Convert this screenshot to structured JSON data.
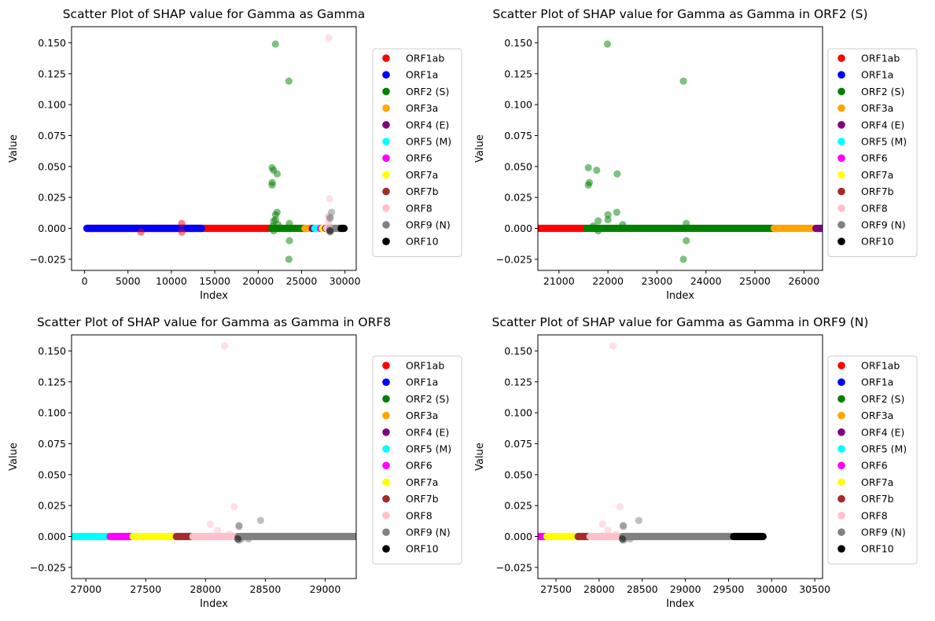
{
  "legend": [
    {
      "name": "ORF1ab",
      "color": "#ff0000"
    },
    {
      "name": "ORF1a",
      "color": "#0000ff"
    },
    {
      "name": "ORF2 (S)",
      "color": "#008000"
    },
    {
      "name": "ORF3a",
      "color": "#ffa500"
    },
    {
      "name": "ORF4 (E)",
      "color": "#800080"
    },
    {
      "name": "ORF5 (M)",
      "color": "#00ffff"
    },
    {
      "name": "ORF6",
      "color": "#ff00ff"
    },
    {
      "name": "ORF7a",
      "color": "#ffff00"
    },
    {
      "name": "ORF7b",
      "color": "#a52a2a"
    },
    {
      "name": "ORF8",
      "color": "#ffc0cb"
    },
    {
      "name": "ORF9 (N)",
      "color": "#808080"
    },
    {
      "name": "ORF10",
      "color": "#000000"
    }
  ],
  "chart_data": [
    {
      "type": "scatter",
      "title": "Scatter Plot of SHAP value for Gamma as Gamma",
      "xlabel": "Index",
      "ylabel": "Value",
      "xlim": [
        -1500,
        31300
      ],
      "ylim": [
        -0.034,
        0.163
      ],
      "xticks": [
        0,
        5000,
        10000,
        15000,
        20000,
        25000,
        30000
      ],
      "yticks": [
        -0.025,
        0,
        0.025,
        0.05,
        0.075,
        0.1,
        0.125,
        0.15
      ],
      "legend_position": "right",
      "series": [
        {
          "name": "ORF1ab",
          "color": "#ff0000",
          "range": [
            266,
            21555
          ],
          "points": [
            [
              6500,
              -0.003
            ],
            [
              11200,
              0.004
            ],
            [
              11200,
              -0.003
            ]
          ]
        },
        {
          "name": "ORF1a",
          "color": "#0000ff",
          "range": [
            266,
            13483
          ],
          "points": []
        },
        {
          "name": "ORF2 (S)",
          "color": "#008000",
          "range": [
            21563,
            25384
          ],
          "points": [
            [
              21990,
              0.149
            ],
            [
              23540,
              0.119
            ],
            [
              21600,
              0.049
            ],
            [
              21770,
              0.047
            ],
            [
              22190,
              0.044
            ],
            [
              21620,
              0.037
            ],
            [
              21600,
              0.035
            ],
            [
              22000,
              0.011
            ],
            [
              22180,
              0.013
            ],
            [
              22000,
              0.007
            ],
            [
              21800,
              0.006
            ],
            [
              23600,
              0.004
            ],
            [
              21700,
              0.002
            ],
            [
              23600,
              -0.01
            ],
            [
              23540,
              -0.025
            ],
            [
              21800,
              -0.002
            ],
            [
              22300,
              0.003
            ]
          ]
        },
        {
          "name": "ORF3a",
          "color": "#ffa500",
          "range": [
            25393,
            26220
          ],
          "points": []
        },
        {
          "name": "ORF4 (E)",
          "color": "#800080",
          "range": [
            26245,
            26472
          ],
          "points": []
        },
        {
          "name": "ORF5 (M)",
          "color": "#00ffff",
          "range": [
            26523,
            27191
          ],
          "points": []
        },
        {
          "name": "ORF6",
          "color": "#ff00ff",
          "range": [
            27202,
            27387
          ],
          "points": []
        },
        {
          "name": "ORF7a",
          "color": "#ffff00",
          "range": [
            27394,
            27759
          ],
          "points": []
        },
        {
          "name": "ORF7b",
          "color": "#a52a2a",
          "range": [
            27756,
            27887
          ],
          "points": []
        },
        {
          "name": "ORF8",
          "color": "#ffc0cb",
          "range": [
            27894,
            28259
          ],
          "points": [
            [
              28160,
              0.154
            ],
            [
              28240,
              0.024
            ],
            [
              28040,
              0.01
            ],
            [
              28100,
              0.005
            ],
            [
              28200,
              0.002
            ]
          ]
        },
        {
          "name": "ORF9 (N)",
          "color": "#808080",
          "range": [
            28274,
            29533
          ],
          "points": [
            [
              28460,
              0.013
            ],
            [
              28280,
              0.009
            ],
            [
              28280,
              0.008
            ],
            [
              28300,
              -0.002
            ],
            [
              28360,
              -0.002
            ],
            [
              28280,
              -0.003
            ]
          ]
        },
        {
          "name": "ORF10",
          "color": "#000000",
          "range": [
            29558,
            29900
          ],
          "points": [
            [
              28270,
              -0.002
            ]
          ]
        }
      ]
    },
    {
      "type": "scatter",
      "title": "Scatter Plot of SHAP value for Gamma as Gamma in ORF2 (S)",
      "xlabel": "Index",
      "ylabel": "Value",
      "xlim": [
        20570,
        26380
      ],
      "ylim": [
        -0.034,
        0.163
      ],
      "xticks": [
        21000,
        22000,
        23000,
        24000,
        25000,
        26000
      ],
      "yticks": [
        -0.025,
        0,
        0.025,
        0.05,
        0.075,
        0.1,
        0.125,
        0.15
      ],
      "legend_position": "right",
      "series": [
        {
          "name": "ORF1ab",
          "color": "#ff0000",
          "range": [
            266,
            21555
          ],
          "points": []
        },
        {
          "name": "ORF1a",
          "color": "#0000ff",
          "range": [
            266,
            13483
          ],
          "points": []
        },
        {
          "name": "ORF2 (S)",
          "color": "#008000",
          "range": [
            21563,
            25384
          ],
          "points": [
            [
              21990,
              0.149
            ],
            [
              23540,
              0.119
            ],
            [
              21600,
              0.049
            ],
            [
              21770,
              0.047
            ],
            [
              22190,
              0.044
            ],
            [
              21620,
              0.037
            ],
            [
              21600,
              0.035
            ],
            [
              22000,
              0.011
            ],
            [
              22180,
              0.013
            ],
            [
              22000,
              0.007
            ],
            [
              21800,
              0.006
            ],
            [
              23600,
              0.004
            ],
            [
              21700,
              0.002
            ],
            [
              23600,
              -0.01
            ],
            [
              23540,
              -0.025
            ],
            [
              21800,
              -0.002
            ],
            [
              22300,
              0.003
            ]
          ]
        },
        {
          "name": "ORF3a",
          "color": "#ffa500",
          "range": [
            25393,
            26220
          ],
          "points": []
        },
        {
          "name": "ORF4 (E)",
          "color": "#800080",
          "range": [
            26245,
            26472
          ],
          "points": []
        },
        {
          "name": "ORF5 (M)",
          "color": "#00ffff",
          "range": [
            26523,
            27191
          ],
          "points": []
        },
        {
          "name": "ORF6",
          "color": "#ff00ff",
          "range": [
            27202,
            27387
          ],
          "points": []
        },
        {
          "name": "ORF7a",
          "color": "#ffff00",
          "range": [
            27394,
            27759
          ],
          "points": []
        },
        {
          "name": "ORF7b",
          "color": "#a52a2a",
          "range": [
            27756,
            27887
          ],
          "points": []
        },
        {
          "name": "ORF8",
          "color": "#ffc0cb",
          "range": [
            27894,
            28259
          ],
          "points": []
        },
        {
          "name": "ORF9 (N)",
          "color": "#808080",
          "range": [
            28274,
            29533
          ],
          "points": []
        },
        {
          "name": "ORF10",
          "color": "#000000",
          "range": [
            29558,
            29900
          ],
          "points": []
        }
      ]
    },
    {
      "type": "scatter",
      "title": "Scatter Plot of SHAP value for Gamma as Gamma in ORF8",
      "xlabel": "Index",
      "ylabel": "Value",
      "xlim": [
        26880,
        29260
      ],
      "ylim": [
        -0.034,
        0.163
      ],
      "xticks": [
        27000,
        27500,
        28000,
        28500,
        29000
      ],
      "yticks": [
        -0.025,
        0,
        0.025,
        0.05,
        0.075,
        0.1,
        0.125,
        0.15
      ],
      "legend_position": "right",
      "series": [
        {
          "name": "ORF1ab",
          "color": "#ff0000",
          "range": [
            266,
            21555
          ],
          "points": []
        },
        {
          "name": "ORF1a",
          "color": "#0000ff",
          "range": [
            266,
            13483
          ],
          "points": []
        },
        {
          "name": "ORF2 (S)",
          "color": "#008000",
          "range": [
            21563,
            25384
          ],
          "points": []
        },
        {
          "name": "ORF3a",
          "color": "#ffa500",
          "range": [
            25393,
            26220
          ],
          "points": []
        },
        {
          "name": "ORF4 (E)",
          "color": "#800080",
          "range": [
            26245,
            26472
          ],
          "points": []
        },
        {
          "name": "ORF5 (M)",
          "color": "#00ffff",
          "range": [
            26523,
            27191
          ],
          "points": []
        },
        {
          "name": "ORF6",
          "color": "#ff00ff",
          "range": [
            27202,
            27387
          ],
          "points": []
        },
        {
          "name": "ORF7a",
          "color": "#ffff00",
          "range": [
            27394,
            27759
          ],
          "points": []
        },
        {
          "name": "ORF7b",
          "color": "#a52a2a",
          "range": [
            27756,
            27887
          ],
          "points": []
        },
        {
          "name": "ORF8",
          "color": "#ffc0cb",
          "range": [
            27894,
            28259
          ],
          "points": [
            [
              28160,
              0.154
            ],
            [
              28240,
              0.024
            ],
            [
              28040,
              0.01
            ],
            [
              28100,
              0.005
            ],
            [
              28200,
              0.002
            ]
          ]
        },
        {
          "name": "ORF9 (N)",
          "color": "#808080",
          "range": [
            28274,
            29533
          ],
          "points": [
            [
              28460,
              0.013
            ],
            [
              28280,
              0.009
            ],
            [
              28280,
              0.008
            ],
            [
              28300,
              -0.002
            ],
            [
              28360,
              -0.002
            ],
            [
              28280,
              -0.003
            ]
          ]
        },
        {
          "name": "ORF10",
          "color": "#000000",
          "range": [
            29558,
            29900
          ],
          "points": [
            [
              28270,
              -0.002
            ]
          ]
        }
      ]
    },
    {
      "type": "scatter",
      "title": "Scatter Plot of SHAP value for Gamma as Gamma in ORF9 (N)",
      "xlabel": "Index",
      "ylabel": "Value",
      "xlim": [
        27290,
        30590
      ],
      "ylim": [
        -0.034,
        0.163
      ],
      "xticks": [
        27500,
        28000,
        28500,
        29000,
        29500,
        30000,
        30500
      ],
      "yticks": [
        -0.025,
        0,
        0.025,
        0.05,
        0.075,
        0.1,
        0.125,
        0.15
      ],
      "legend_position": "right",
      "series": [
        {
          "name": "ORF1ab",
          "color": "#ff0000",
          "range": [
            266,
            21555
          ],
          "points": []
        },
        {
          "name": "ORF1a",
          "color": "#0000ff",
          "range": [
            266,
            13483
          ],
          "points": []
        },
        {
          "name": "ORF2 (S)",
          "color": "#008000",
          "range": [
            21563,
            25384
          ],
          "points": []
        },
        {
          "name": "ORF3a",
          "color": "#ffa500",
          "range": [
            25393,
            26220
          ],
          "points": []
        },
        {
          "name": "ORF4 (E)",
          "color": "#800080",
          "range": [
            26245,
            26472
          ],
          "points": []
        },
        {
          "name": "ORF5 (M)",
          "color": "#00ffff",
          "range": [
            26523,
            27191
          ],
          "points": []
        },
        {
          "name": "ORF6",
          "color": "#ff00ff",
          "range": [
            27202,
            27387
          ],
          "points": []
        },
        {
          "name": "ORF7a",
          "color": "#ffff00",
          "range": [
            27394,
            27759
          ],
          "points": []
        },
        {
          "name": "ORF7b",
          "color": "#a52a2a",
          "range": [
            27756,
            27887
          ],
          "points": []
        },
        {
          "name": "ORF8",
          "color": "#ffc0cb",
          "range": [
            27894,
            28259
          ],
          "points": [
            [
              28160,
              0.154
            ],
            [
              28240,
              0.024
            ],
            [
              28040,
              0.01
            ],
            [
              28100,
              0.005
            ],
            [
              28200,
              0.002
            ]
          ]
        },
        {
          "name": "ORF9 (N)",
          "color": "#808080",
          "range": [
            28274,
            29533
          ],
          "points": [
            [
              28460,
              0.013
            ],
            [
              28280,
              0.009
            ],
            [
              28280,
              0.008
            ],
            [
              28300,
              -0.002
            ],
            [
              28360,
              -0.002
            ],
            [
              28280,
              -0.003
            ]
          ]
        },
        {
          "name": "ORF10",
          "color": "#000000",
          "range": [
            29558,
            29900
          ],
          "points": [
            [
              28270,
              -0.002
            ]
          ]
        }
      ]
    }
  ]
}
